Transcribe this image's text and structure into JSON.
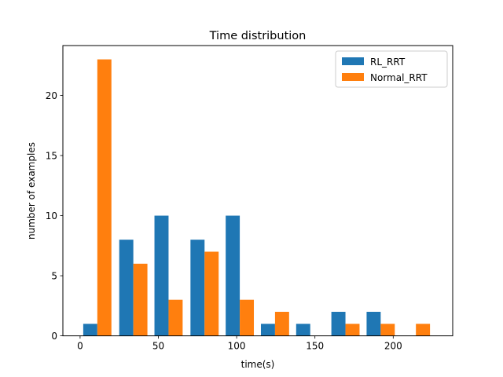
{
  "chart_data": {
    "type": "bar",
    "title": "Time distribution",
    "xlabel": "time(s)",
    "ylabel": "number of examples",
    "xlim": [
      -11,
      238
    ],
    "ylim": [
      0,
      24.15
    ],
    "xticks": [
      0,
      50,
      100,
      150,
      200
    ],
    "yticks": [
      0,
      5,
      10,
      15,
      20
    ],
    "grid": false,
    "legend_position": "top-right",
    "bin_centers": [
      11,
      34,
      56.5,
      79.5,
      102,
      124.5,
      147,
      169.5,
      192,
      214.5
    ],
    "bin_width": 22.5,
    "series": [
      {
        "name": "RL_RRT",
        "color": "#1f77b4",
        "values": [
          1,
          8,
          10,
          8,
          10,
          1,
          1,
          2,
          2,
          0
        ]
      },
      {
        "name": "Normal_RRT",
        "color": "#ff7f0e",
        "values": [
          23,
          6,
          3,
          7,
          3,
          2,
          0,
          1,
          1,
          1
        ]
      }
    ]
  }
}
